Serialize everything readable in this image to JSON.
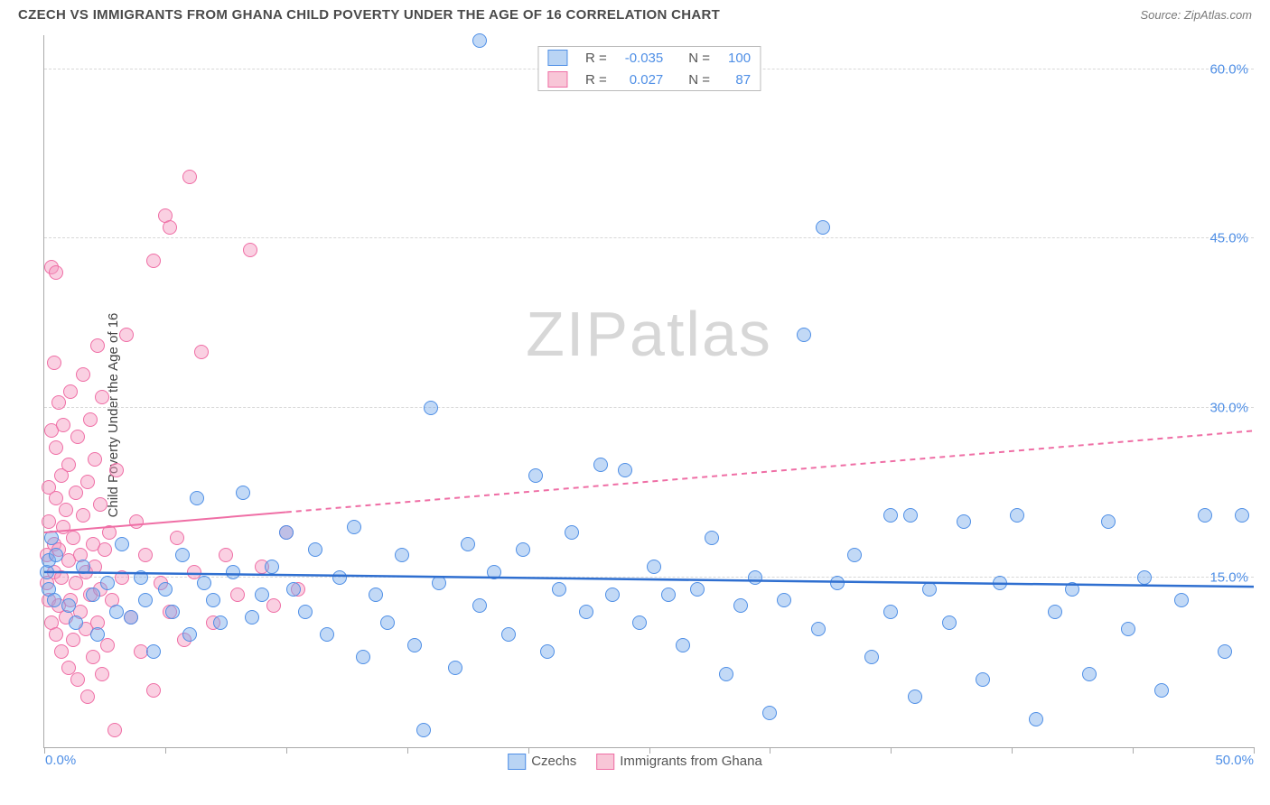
{
  "header": {
    "title": "CZECH VS IMMIGRANTS FROM GHANA CHILD POVERTY UNDER THE AGE OF 16 CORRELATION CHART",
    "source": "Source: ZipAtlas.com"
  },
  "ylabel": "Child Poverty Under the Age of 16",
  "watermark_1": "ZIP",
  "watermark_2": "atlas",
  "xlim": [
    0,
    50
  ],
  "ylim": [
    0,
    63
  ],
  "x_axis": {
    "min_label": "0.0%",
    "max_label": "50.0%",
    "tick_positions": [
      0,
      5,
      10,
      15,
      20,
      25,
      30,
      35,
      40,
      45,
      50
    ]
  },
  "y_gridlines": [
    {
      "value": 15,
      "label": "15.0%"
    },
    {
      "value": 30,
      "label": "30.0%"
    },
    {
      "value": 45,
      "label": "45.0%"
    },
    {
      "value": 60,
      "label": "60.0%"
    }
  ],
  "stats_legend": {
    "rows": [
      {
        "swatch_fill": "#b9d4f4",
        "swatch_border": "#4f8fe6",
        "r_label": "R =",
        "r_value": "-0.035",
        "n_label": "N =",
        "n_value": "100"
      },
      {
        "swatch_fill": "#f8c6d7",
        "swatch_border": "#ef6ea5",
        "r_label": "R =",
        "r_value": "0.027",
        "n_label": "N =",
        "n_value": "87"
      }
    ],
    "label_color": "#555",
    "value_color": "#4f8fe6"
  },
  "series_legend": [
    {
      "swatch_fill": "#b9d4f4",
      "swatch_border": "#4f8fe6",
      "label": "Czechs"
    },
    {
      "swatch_fill": "#f8c6d7",
      "swatch_border": "#ef6ea5",
      "label": "Immigrants from Ghana"
    }
  ],
  "marker_radius": 8,
  "series": {
    "blue": {
      "fill": "rgba(120,170,235,0.45)",
      "stroke": "#4f8fe6",
      "trend": {
        "color": "#2f6fd0",
        "width": 2.5,
        "y_start": 15.5,
        "y_end": 14.2,
        "dash_from_x": null
      },
      "points": [
        [
          0.1,
          15.5
        ],
        [
          0.2,
          14.0
        ],
        [
          0.2,
          16.5
        ],
        [
          0.3,
          18.5
        ],
        [
          0.4,
          13.0
        ],
        [
          0.5,
          17.0
        ],
        [
          1.0,
          12.5
        ],
        [
          1.3,
          11.0
        ],
        [
          1.6,
          16.0
        ],
        [
          2.0,
          13.5
        ],
        [
          2.2,
          10.0
        ],
        [
          2.6,
          14.5
        ],
        [
          3.0,
          12.0
        ],
        [
          3.2,
          18.0
        ],
        [
          3.6,
          11.5
        ],
        [
          4.0,
          15.0
        ],
        [
          4.2,
          13.0
        ],
        [
          4.5,
          8.5
        ],
        [
          5.0,
          14.0
        ],
        [
          5.3,
          12.0
        ],
        [
          5.7,
          17.0
        ],
        [
          6.0,
          10.0
        ],
        [
          6.3,
          22.0
        ],
        [
          6.6,
          14.5
        ],
        [
          7.0,
          13.0
        ],
        [
          7.3,
          11.0
        ],
        [
          7.8,
          15.5
        ],
        [
          8.2,
          22.5
        ],
        [
          8.6,
          11.5
        ],
        [
          9.0,
          13.5
        ],
        [
          9.4,
          16.0
        ],
        [
          10.0,
          19.0
        ],
        [
          10.3,
          14.0
        ],
        [
          10.8,
          12.0
        ],
        [
          11.2,
          17.5
        ],
        [
          11.7,
          10.0
        ],
        [
          12.2,
          15.0
        ],
        [
          12.8,
          19.5
        ],
        [
          13.2,
          8.0
        ],
        [
          13.7,
          13.5
        ],
        [
          14.2,
          11.0
        ],
        [
          14.8,
          17.0
        ],
        [
          15.3,
          9.0
        ],
        [
          15.7,
          1.5
        ],
        [
          16.0,
          30.0
        ],
        [
          16.3,
          14.5
        ],
        [
          17.0,
          7.0
        ],
        [
          17.5,
          18.0
        ],
        [
          18.0,
          12.5
        ],
        [
          18.0,
          62.5
        ],
        [
          18.6,
          15.5
        ],
        [
          19.2,
          10.0
        ],
        [
          19.8,
          17.5
        ],
        [
          20.3,
          24.0
        ],
        [
          20.8,
          8.5
        ],
        [
          21.3,
          14.0
        ],
        [
          21.8,
          19.0
        ],
        [
          22.4,
          12.0
        ],
        [
          23.0,
          25.0
        ],
        [
          23.5,
          13.5
        ],
        [
          24.0,
          24.5
        ],
        [
          24.6,
          11.0
        ],
        [
          25.2,
          16.0
        ],
        [
          25.8,
          13.5
        ],
        [
          26.4,
          9.0
        ],
        [
          27.0,
          14.0
        ],
        [
          27.6,
          18.5
        ],
        [
          28.2,
          6.5
        ],
        [
          28.8,
          12.5
        ],
        [
          29.4,
          15.0
        ],
        [
          30.0,
          3.0
        ],
        [
          30.6,
          13.0
        ],
        [
          31.4,
          36.5
        ],
        [
          32.0,
          10.5
        ],
        [
          32.2,
          46.0
        ],
        [
          32.8,
          14.5
        ],
        [
          33.5,
          17.0
        ],
        [
          34.2,
          8.0
        ],
        [
          35.0,
          20.5
        ],
        [
          35.0,
          12.0
        ],
        [
          35.8,
          20.5
        ],
        [
          36.0,
          4.5
        ],
        [
          36.6,
          14.0
        ],
        [
          37.4,
          11.0
        ],
        [
          38.0,
          20.0
        ],
        [
          38.8,
          6.0
        ],
        [
          39.5,
          14.5
        ],
        [
          40.2,
          20.5
        ],
        [
          41.0,
          2.5
        ],
        [
          41.8,
          12.0
        ],
        [
          42.5,
          14.0
        ],
        [
          43.2,
          6.5
        ],
        [
          44.0,
          20.0
        ],
        [
          44.8,
          10.5
        ],
        [
          45.5,
          15.0
        ],
        [
          46.2,
          5.0
        ],
        [
          47.0,
          13.0
        ],
        [
          48.0,
          20.5
        ],
        [
          48.8,
          8.5
        ],
        [
          49.5,
          20.5
        ]
      ]
    },
    "pink": {
      "fill": "rgba(245,150,190,0.45)",
      "stroke": "#ef6ea5",
      "trend": {
        "color": "#ef6ea5",
        "width": 2,
        "y_start": 19.0,
        "y_end": 28.0,
        "dash_from_x": 10
      },
      "points": [
        [
          0.1,
          17.0
        ],
        [
          0.1,
          14.5
        ],
        [
          0.2,
          13.0
        ],
        [
          0.2,
          20.0
        ],
        [
          0.2,
          23.0
        ],
        [
          0.3,
          11.0
        ],
        [
          0.3,
          28.0
        ],
        [
          0.3,
          42.5
        ],
        [
          0.4,
          15.5
        ],
        [
          0.4,
          18.0
        ],
        [
          0.4,
          34.0
        ],
        [
          0.5,
          10.0
        ],
        [
          0.5,
          22.0
        ],
        [
          0.5,
          26.5
        ],
        [
          0.5,
          42.0
        ],
        [
          0.6,
          12.5
        ],
        [
          0.6,
          17.5
        ],
        [
          0.6,
          30.5
        ],
        [
          0.7,
          8.5
        ],
        [
          0.7,
          15.0
        ],
        [
          0.7,
          24.0
        ],
        [
          0.8,
          19.5
        ],
        [
          0.8,
          28.5
        ],
        [
          0.9,
          11.5
        ],
        [
          0.9,
          21.0
        ],
        [
          1.0,
          7.0
        ],
        [
          1.0,
          16.5
        ],
        [
          1.0,
          25.0
        ],
        [
          1.1,
          13.0
        ],
        [
          1.1,
          31.5
        ],
        [
          1.2,
          9.5
        ],
        [
          1.2,
          18.5
        ],
        [
          1.3,
          14.5
        ],
        [
          1.3,
          22.5
        ],
        [
          1.4,
          6.0
        ],
        [
          1.4,
          27.5
        ],
        [
          1.5,
          12.0
        ],
        [
          1.5,
          17.0
        ],
        [
          1.6,
          20.5
        ],
        [
          1.6,
          33.0
        ],
        [
          1.7,
          10.5
        ],
        [
          1.7,
          15.5
        ],
        [
          1.8,
          4.5
        ],
        [
          1.8,
          23.5
        ],
        [
          1.9,
          13.5
        ],
        [
          1.9,
          29.0
        ],
        [
          2.0,
          8.0
        ],
        [
          2.0,
          18.0
        ],
        [
          2.1,
          16.0
        ],
        [
          2.1,
          25.5
        ],
        [
          2.2,
          11.0
        ],
        [
          2.2,
          35.5
        ],
        [
          2.3,
          14.0
        ],
        [
          2.3,
          21.5
        ],
        [
          2.4,
          6.5
        ],
        [
          2.4,
          31.0
        ],
        [
          2.5,
          17.5
        ],
        [
          2.6,
          9.0
        ],
        [
          2.7,
          19.0
        ],
        [
          2.8,
          13.0
        ],
        [
          2.9,
          1.5
        ],
        [
          3.0,
          24.5
        ],
        [
          3.2,
          15.0
        ],
        [
          3.4,
          36.5
        ],
        [
          3.6,
          11.5
        ],
        [
          3.8,
          20.0
        ],
        [
          4.0,
          8.5
        ],
        [
          4.2,
          17.0
        ],
        [
          4.5,
          5.0
        ],
        [
          4.5,
          43.0
        ],
        [
          4.8,
          14.5
        ],
        [
          5.0,
          47.0
        ],
        [
          5.2,
          12.0
        ],
        [
          5.2,
          46.0
        ],
        [
          5.5,
          18.5
        ],
        [
          5.8,
          9.5
        ],
        [
          6.0,
          50.5
        ],
        [
          6.2,
          15.5
        ],
        [
          6.5,
          35.0
        ],
        [
          7.0,
          11.0
        ],
        [
          7.5,
          17.0
        ],
        [
          8.0,
          13.5
        ],
        [
          8.5,
          44.0
        ],
        [
          9.0,
          16.0
        ],
        [
          9.5,
          12.5
        ],
        [
          10.0,
          19.0
        ],
        [
          10.5,
          14.0
        ]
      ]
    }
  }
}
